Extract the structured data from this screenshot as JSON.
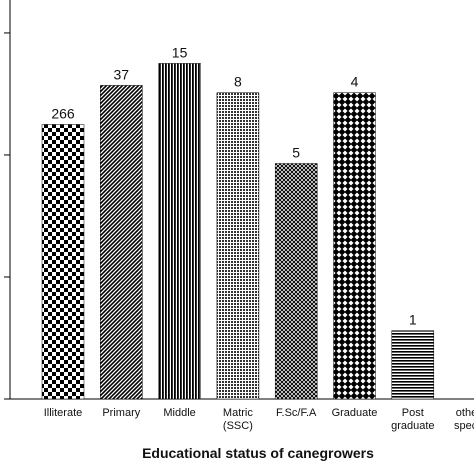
{
  "chart_data": {
    "type": "bar",
    "x_label": "Educational status of canegrowers",
    "categories": [
      "Illiterate",
      "Primary",
      "Middle",
      "Matric\n(SSC)",
      "F.Sc/F.A",
      "Graduate",
      "Post\ngraduate",
      "others\nspecify"
    ],
    "values": [
      2.25,
      2.57,
      2.75,
      2.51,
      1.93,
      2.51,
      0.56,
      null
    ],
    "bar_annotations": [
      "266",
      "37",
      "15",
      "8",
      "5",
      "4",
      "1",
      null
    ],
    "color": "#000000",
    "ylim": [
      0,
      3.27
    ],
    "yticks": [
      0,
      1,
      2,
      3
    ]
  }
}
